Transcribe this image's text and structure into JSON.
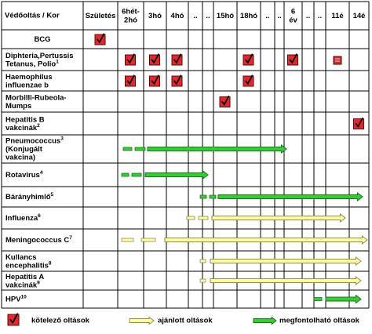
{
  "header": {
    "corner": "Védőoltás / Kor",
    "ages": [
      [
        "Születés"
      ],
      [
        "6hét-",
        "2hó"
      ],
      [
        "3hó"
      ],
      [
        "4hó"
      ],
      [
        ".."
      ],
      [
        ".."
      ],
      [
        "15hó"
      ],
      [
        "18hó"
      ],
      [
        ".."
      ],
      [
        ".."
      ],
      [
        "6",
        "év"
      ],
      [
        ".."
      ],
      [
        ".."
      ],
      [
        "11é"
      ],
      [
        "14é"
      ]
    ]
  },
  "rows": [
    {
      "label": [
        {
          "text": "BCG"
        }
      ]
    },
    {
      "label": [
        {
          "text": "Diphteria,Pertussis"
        },
        {
          "text": "Tetanus, Polio",
          "note": "1"
        }
      ]
    },
    {
      "label": [
        {
          "text": "Haemophilus"
        },
        {
          "text": "influenzae b"
        }
      ]
    },
    {
      "label": [
        {
          "text": "Morbilli-Rubeola-"
        },
        {
          "text": "Mumps"
        }
      ]
    },
    {
      "label": [
        {
          "text": "Hepatitis B"
        },
        {
          "text": "vakcinák",
          "note": "2"
        }
      ]
    },
    {
      "label": [
        {
          "text": "Pneumococcus",
          "note": "3"
        },
        {
          "text": "(Konjugált"
        },
        {
          "text": "vakcina)"
        }
      ]
    },
    {
      "label": [
        {
          "text": "Rotavirus",
          "note": "4"
        }
      ]
    },
    {
      "label": [
        {
          "text": "Bárányhimlő",
          "note": "5"
        }
      ]
    },
    {
      "label": [
        {
          "text": "Influenza",
          "note": "6"
        }
      ]
    },
    {
      "label": [
        {
          "text": "Meningococcus C",
          "note": "7"
        }
      ]
    },
    {
      "label": [
        {
          "text": "Kullancs"
        },
        {
          "text": "encephalitis",
          "note": "8"
        }
      ]
    },
    {
      "label": [
        {
          "text": "Hepatitis A"
        },
        {
          "text": "vakcinák",
          "note": "9"
        }
      ]
    },
    {
      "label": [
        {
          "text": "HPV",
          "note": "10"
        }
      ]
    }
  ],
  "legend": {
    "mandatory": "kötelező oltások",
    "recommended": "ajánlott oltások",
    "optional": "megfontolható oltások"
  }
}
